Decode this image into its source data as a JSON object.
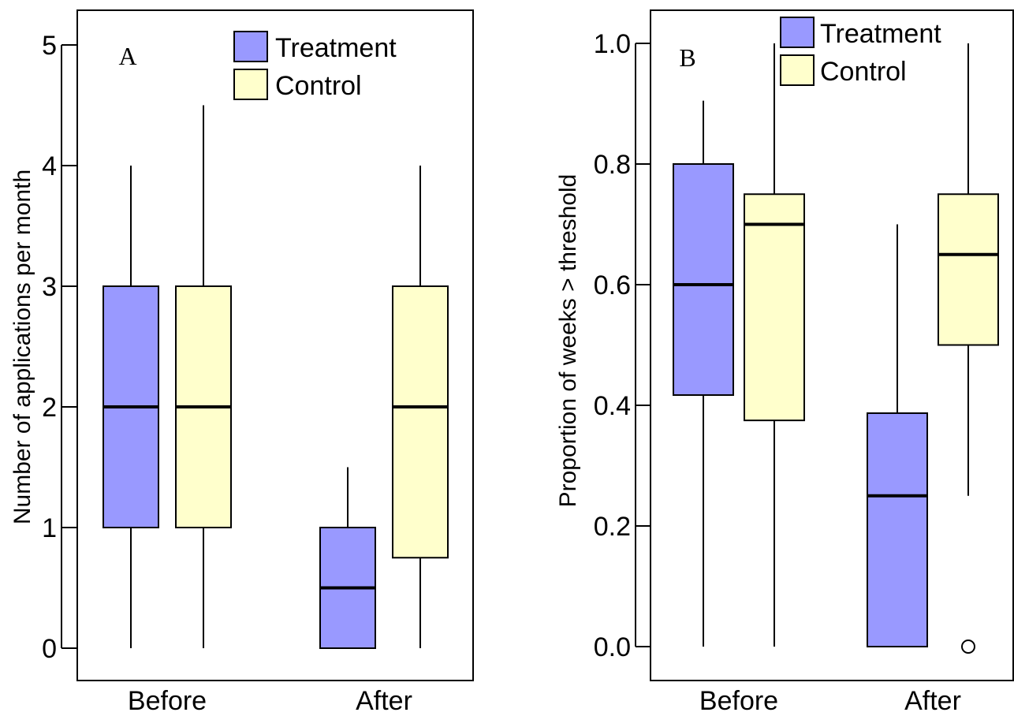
{
  "colors": {
    "treatment": "#9999ff",
    "control": "#ffffcc",
    "stroke": "#000000",
    "background": "#ffffff"
  },
  "chart_data": [
    {
      "type": "box",
      "panel_label": "A",
      "xlabel": "",
      "ylabel": "Number of applications per month",
      "ylim": [
        0,
        5
      ],
      "yticks": [
        0,
        1,
        2,
        3,
        4,
        5
      ],
      "ytick_labels": [
        "0",
        "1",
        "2",
        "3",
        "4",
        "5"
      ],
      "categories": [
        "Before",
        "After"
      ],
      "legend": {
        "placement": "top-right",
        "entries": [
          "Treatment",
          "Control"
        ]
      },
      "series": [
        {
          "name": "Treatment",
          "boxes": [
            {
              "category": "Before",
              "whisker_low": 0,
              "q1": 1,
              "median": 2,
              "q3": 3,
              "whisker_high": 4,
              "outliers": []
            },
            {
              "category": "After",
              "whisker_low": 0,
              "q1": 0,
              "median": 0.5,
              "q3": 1,
              "whisker_high": 1.5,
              "outliers": []
            }
          ]
        },
        {
          "name": "Control",
          "boxes": [
            {
              "category": "Before",
              "whisker_low": 0,
              "q1": 1,
              "median": 2,
              "q3": 3,
              "whisker_high": 4.5,
              "outliers": []
            },
            {
              "category": "After",
              "whisker_low": 0,
              "q1": 0.75,
              "median": 2,
              "q3": 3,
              "whisker_high": 4,
              "outliers": []
            }
          ]
        }
      ]
    },
    {
      "type": "box",
      "panel_label": "B",
      "xlabel": "",
      "ylabel": "Proportion of weeks > threshold",
      "ylim": [
        0,
        1.0
      ],
      "yticks": [
        0,
        0.2,
        0.4,
        0.6,
        0.8,
        1.0
      ],
      "ytick_labels": [
        "0.0",
        "0.2",
        "0.4",
        "0.6",
        "0.8",
        "1.0"
      ],
      "categories": [
        "Before",
        "After"
      ],
      "legend": {
        "placement": "top-right",
        "entries": [
          "Treatment",
          "Control"
        ]
      },
      "series": [
        {
          "name": "Treatment",
          "boxes": [
            {
              "category": "Before",
              "whisker_low": 0,
              "q1": 0.417,
              "median": 0.6,
              "q3": 0.8,
              "whisker_high": 0.905,
              "outliers": []
            },
            {
              "category": "After",
              "whisker_low": 0,
              "q1": 0,
              "median": 0.25,
              "q3": 0.387,
              "whisker_high": 0.7,
              "outliers": []
            }
          ]
        },
        {
          "name": "Control",
          "boxes": [
            {
              "category": "Before",
              "whisker_low": 0,
              "q1": 0.375,
              "median": 0.7,
              "q3": 0.75,
              "whisker_high": 1.0,
              "outliers": []
            },
            {
              "category": "After",
              "whisker_low": 0.25,
              "q1": 0.5,
              "median": 0.65,
              "q3": 0.75,
              "whisker_high": 1.0,
              "outliers": [
                0
              ]
            }
          ]
        }
      ]
    }
  ]
}
